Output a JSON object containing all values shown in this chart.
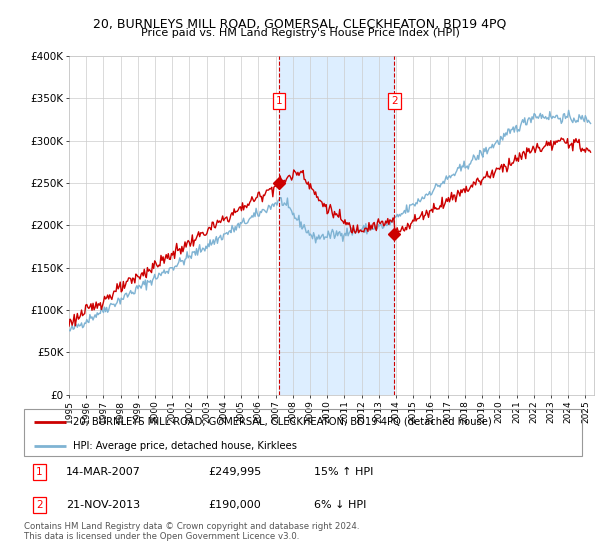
{
  "title": "20, BURNLEYS MILL ROAD, GOMERSAL, CLECKHEATON, BD19 4PQ",
  "subtitle": "Price paid vs. HM Land Registry's House Price Index (HPI)",
  "legend_property": "20, BURNLEYS MILL ROAD, GOMERSAL, CLECKHEATON, BD19 4PQ (detached house)",
  "legend_hpi": "HPI: Average price, detached house, Kirklees",
  "sale1_label": "1",
  "sale1_date_str": "14-MAR-2007",
  "sale1_price": 249995,
  "sale1_hpi_pct": "15% ↑ HPI",
  "sale1_year": 2007.2,
  "sale2_label": "2",
  "sale2_date_str": "21-NOV-2013",
  "sale2_price": 190000,
  "sale2_hpi_pct": "6% ↓ HPI",
  "sale2_year": 2013.89,
  "property_color": "#cc0000",
  "hpi_color": "#7fb3d3",
  "shade_color": "#ddeeff",
  "vline_color": "#cc0000",
  "footer": "Contains HM Land Registry data © Crown copyright and database right 2024.\nThis data is licensed under the Open Government Licence v3.0.",
  "ylim_max": 400000,
  "xlim_start": 1995,
  "xlim_end": 2025.5,
  "yticks": [
    0,
    50000,
    100000,
    150000,
    200000,
    250000,
    300000,
    350000,
    400000
  ],
  "ytick_labels": [
    "£0",
    "£50K",
    "£100K",
    "£150K",
    "£200K",
    "£250K",
    "£300K",
    "£350K",
    "£400K"
  ]
}
